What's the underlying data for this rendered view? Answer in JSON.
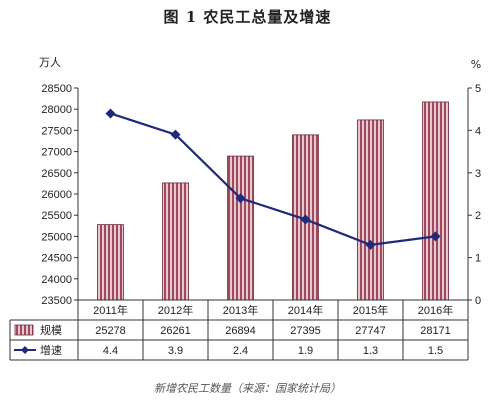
{
  "title": "图 1  农民工总量及增速",
  "caption": "新增农民工数量（来源：国家统计局）",
  "chart_data": {
    "type": "bar",
    "title": "图 1  农民工总量及增速",
    "categories": [
      "2011年",
      "2012年",
      "2013年",
      "2014年",
      "2015年",
      "2016年"
    ],
    "series": [
      {
        "name": "规模",
        "type": "bar",
        "axis": "left",
        "values": [
          25278,
          26261,
          26894,
          27395,
          27747,
          28171
        ]
      },
      {
        "name": "增速",
        "type": "line",
        "axis": "right",
        "values": [
          4.4,
          3.9,
          2.4,
          1.9,
          1.3,
          1.5
        ]
      }
    ],
    "ylabel_left": "万人",
    "ylabel_right": "%",
    "ylim_left": [
      23500,
      28500
    ],
    "ylim_right": [
      0,
      5
    ],
    "yticks_left": [
      "23500",
      "24000",
      "24500",
      "25000",
      "25500",
      "26000",
      "26500",
      "27000",
      "27500",
      "28000",
      "28500"
    ],
    "yticks_right": [
      "0",
      "1",
      "2",
      "3",
      "4",
      "5"
    ],
    "table_rows": [
      {
        "label": "规模",
        "values": [
          "25278",
          "26261",
          "26894",
          "27395",
          "27747",
          "28171"
        ]
      },
      {
        "label": "增速",
        "values": [
          "4.4",
          "3.9",
          "2.4",
          "1.9",
          "1.3",
          "1.5"
        ]
      }
    ],
    "grid": false,
    "legend": "data-table",
    "colors": {
      "bar_fill": "#e8c7cf",
      "bar_hatch": "#9c4a5e",
      "bar_stroke": "#6b2a3a",
      "line": "#1f2a7a"
    }
  }
}
